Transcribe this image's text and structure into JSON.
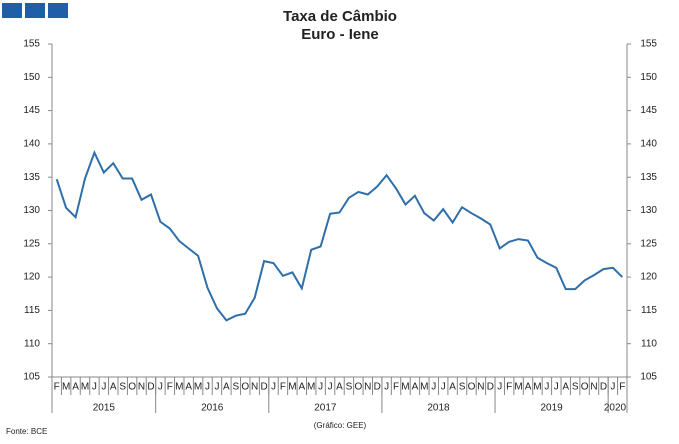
{
  "chart_data": {
    "type": "line",
    "title": "Taxa de Câmbio",
    "subtitle": "Euro - Iene",
    "source": "Fonte: BCE",
    "credit": "(Gráfico: GEE)",
    "categories": [
      "F",
      "M",
      "A",
      "M",
      "J",
      "J",
      "A",
      "S",
      "O",
      "N",
      "D",
      "J",
      "F",
      "M",
      "A",
      "M",
      "J",
      "J",
      "A",
      "S",
      "O",
      "N",
      "D",
      "J",
      "F",
      "M",
      "A",
      "M",
      "J",
      "J",
      "A",
      "S",
      "O",
      "N",
      "D",
      "J",
      "F",
      "M",
      "A",
      "M",
      "J",
      "J",
      "A",
      "S",
      "O",
      "N",
      "D",
      "J",
      "F",
      "M",
      "A",
      "M",
      "J",
      "J",
      "A",
      "S",
      "O",
      "N",
      "D",
      "J",
      "F"
    ],
    "years": [
      "2015",
      "2016",
      "2017",
      "2018",
      "2019",
      "2020"
    ],
    "series": [
      {
        "color": "#2e6faa",
        "values": [
          134.7,
          130.4,
          129.0,
          134.8,
          138.7,
          135.7,
          137.1,
          134.8,
          134.8,
          131.6,
          132.4,
          128.3,
          127.3,
          125.4,
          124.3,
          123.2,
          118.4,
          115.3,
          113.5,
          114.2,
          114.5,
          116.9,
          122.4,
          122.1,
          120.2,
          120.7,
          118.3,
          124.1,
          124.6,
          129.5,
          129.7,
          131.9,
          132.8,
          132.4,
          133.6,
          135.3,
          133.3,
          130.9,
          132.2,
          129.6,
          128.5,
          130.2,
          128.2,
          130.5,
          129.6,
          128.8,
          127.9,
          124.3,
          125.3,
          125.7,
          125.5,
          122.9,
          122.1,
          121.4,
          118.2,
          118.2,
          119.5,
          120.3,
          121.2,
          121.4,
          120.0
        ]
      }
    ],
    "ylim": [
      105,
      155
    ],
    "yticks": [
      105,
      110,
      115,
      120,
      125,
      130,
      135,
      140,
      145,
      150,
      155
    ],
    "y2lim": [
      105,
      155
    ],
    "y2ticks": [
      105,
      110,
      115,
      120,
      125,
      130,
      135,
      140,
      145,
      150,
      155
    ]
  }
}
